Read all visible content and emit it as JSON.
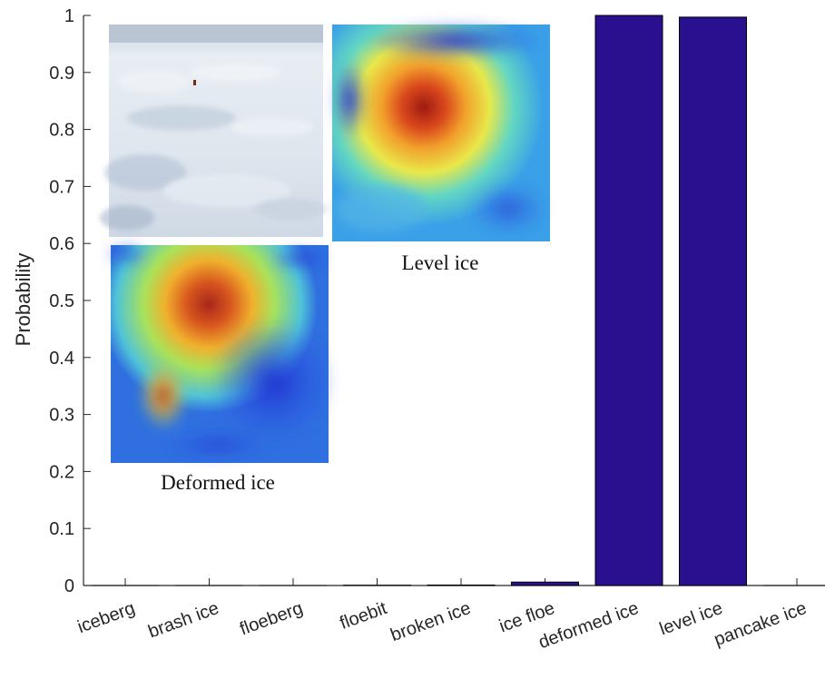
{
  "chart_data": {
    "type": "bar",
    "ylabel": "Probability",
    "xlabel": "",
    "ylim": [
      0,
      1
    ],
    "yticks": [
      "0",
      "0.1",
      "0.2",
      "0.3",
      "0.4",
      "0.5",
      "0.6",
      "0.7",
      "0.8",
      "0.9",
      "1"
    ],
    "categories": [
      "iceberg",
      "brash ice",
      "floeberg",
      "floebit",
      "broken ice",
      "ice floe",
      "deformed ice",
      "level ice",
      "pancake ice"
    ],
    "values": [
      0.0,
      0.0,
      0.0,
      0.0005,
      0.0008,
      0.006,
      1.0,
      0.997,
      0.0
    ],
    "bar_color": "#2a0f8f",
    "grid": false,
    "inset_captions": {
      "level": "Level ice",
      "deformed": "Deformed ice"
    }
  }
}
